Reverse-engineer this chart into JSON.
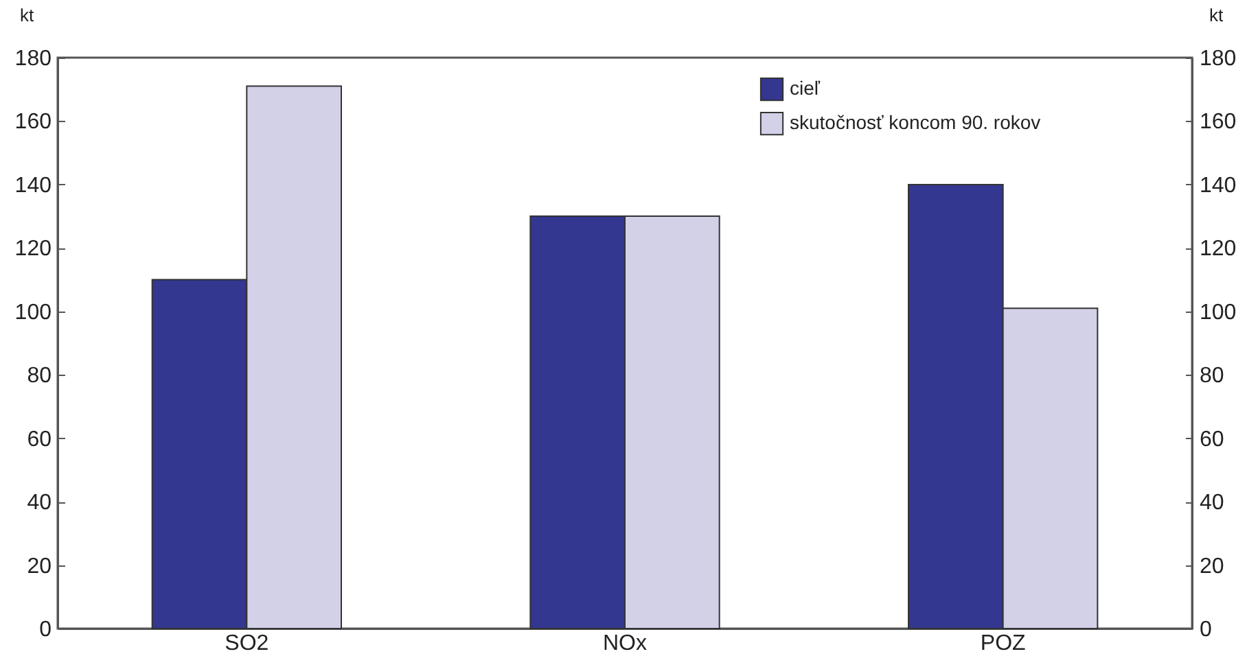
{
  "chart_data": {
    "type": "bar",
    "categories": [
      "SO2",
      "NOx",
      "POZ"
    ],
    "series": [
      {
        "name": "cieľ",
        "color": "#333790",
        "values": [
          110,
          130,
          140
        ]
      },
      {
        "name": "skutočnosť koncom 90. rokov",
        "color": "#d3d1e8",
        "values": [
          171,
          130,
          101
        ]
      }
    ],
    "ylabel": "kt",
    "y2label": "kt",
    "ylim": [
      0,
      180
    ],
    "yticks": [
      0,
      20,
      40,
      60,
      80,
      100,
      120,
      140,
      160,
      180
    ],
    "y2lim": [
      0,
      180
    ],
    "y2ticks": [
      0,
      20,
      40,
      60,
      80,
      100,
      120,
      140,
      160,
      180
    ],
    "grid": false,
    "legend": "top right"
  }
}
